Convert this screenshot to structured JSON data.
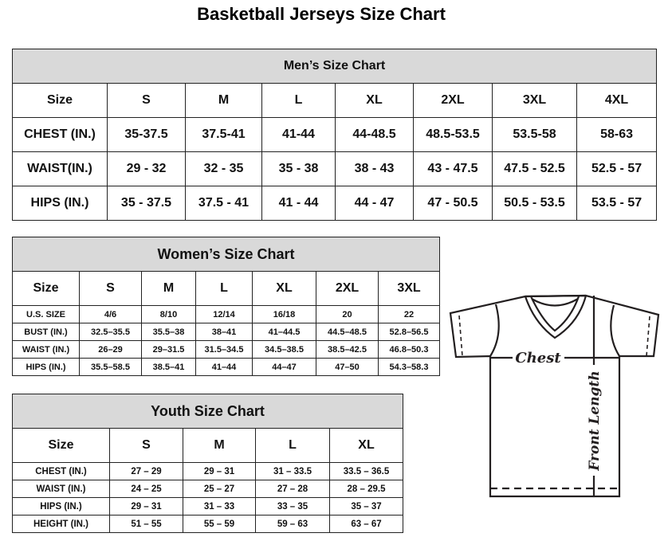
{
  "title": "Basketball Jerseys Size Chart",
  "men": {
    "title": "Men’s Size Chart",
    "header": [
      "Size",
      "S",
      "M",
      "L",
      "XL",
      "2XL",
      "3XL",
      "4XL"
    ],
    "rows": [
      [
        "CHEST (IN.)",
        "35-37.5",
        "37.5-41",
        "41-44",
        "44-48.5",
        "48.5-53.5",
        "53.5-58",
        "58-63"
      ],
      [
        "WAIST(IN.)",
        "29 - 32",
        "32 - 35",
        "35 - 38",
        "38 - 43",
        "43 - 47.5",
        "47.5 - 52.5",
        "52.5 - 57"
      ],
      [
        "HIPS (IN.)",
        "35 - 37.5",
        "37.5 - 41",
        "41 - 44",
        "44 - 47",
        "47 - 50.5",
        "50.5 - 53.5",
        "53.5 - 57"
      ]
    ]
  },
  "women": {
    "title": "Women’s Size Chart",
    "header": [
      "Size",
      "S",
      "M",
      "L",
      "XL",
      "2XL",
      "3XL"
    ],
    "rows": [
      [
        "U.S. SIZE",
        "4/6",
        "8/10",
        "12/14",
        "16/18",
        "20",
        "22"
      ],
      [
        "BUST (IN.)",
        "32.5–35.5",
        "35.5–38",
        "38–41",
        "41–44.5",
        "44.5–48.5",
        "52.8–56.5"
      ],
      [
        "WAIST (IN.)",
        "26–29",
        "29–31.5",
        "31.5–34.5",
        "34.5–38.5",
        "38.5–42.5",
        "46.8–50.3"
      ],
      [
        "HIPS (IN.)",
        "35.5–58.5",
        "38.5–41",
        "41–44",
        "44–47",
        "47–50",
        "54.3–58.3"
      ]
    ]
  },
  "youth": {
    "title": "Youth Size Chart",
    "header": [
      "Size",
      "S",
      "M",
      "L",
      "XL"
    ],
    "rows": [
      [
        "CHEST (IN.)",
        "27 – 29",
        "29 – 31",
        "31 – 33.5",
        "33.5 – 36.5"
      ],
      [
        "WAIST (IN.)",
        "24 – 25",
        "25 – 27",
        "27 – 28",
        "28 – 29.5"
      ],
      [
        "HIPS (IN.)",
        "29 – 31",
        "31 – 33",
        "33 – 35",
        "35 – 37"
      ],
      [
        "HEIGHT (IN.)",
        "51 – 55",
        "55 – 59",
        "59 – 63",
        "63 – 67"
      ]
    ]
  },
  "diagram": {
    "chest_label": "Chest",
    "length_label": "Front Length",
    "icon": "t-shirt-measurement-icon"
  }
}
